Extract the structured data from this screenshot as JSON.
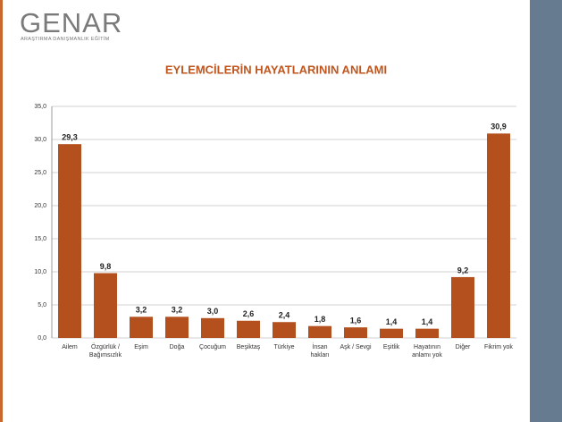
{
  "header": {
    "logo": "GENAR",
    "tagline": "ARAŞTIRMA DANIŞMANLIK EĞİTİM"
  },
  "chart_data": {
    "type": "bar",
    "title": "EYLEMCİLERİN HAYATLARININ ANLAMI",
    "categories": [
      "Ailem",
      "Özgürlük / Bağımsızlık",
      "Eşim",
      "Doğa",
      "Çocuğum",
      "Beşiktaş",
      "Türkiye",
      "İnsan hakları",
      "Aşk / Sevgi",
      "Eşitlik",
      "Hayatının anlamı yok",
      "Diğer",
      "Fikrim yok"
    ],
    "values": [
      29.3,
      9.8,
      3.2,
      3.2,
      3.0,
      2.6,
      2.4,
      1.8,
      1.6,
      1.4,
      1.4,
      9.2,
      30.9
    ],
    "value_labels": [
      "29,3",
      "9,8",
      "3,2",
      "3,2",
      "3,0",
      "2,6",
      "2,4",
      "1,8",
      "1,6",
      "1,4",
      "1,4",
      "9,2",
      "30,9"
    ],
    "color": "#b4501d",
    "ylim": [
      0,
      35
    ],
    "yticks": [
      {
        "value": 0,
        "label": "0,0"
      },
      {
        "value": 5,
        "label": "5,0"
      },
      {
        "value": 10,
        "label": "10,0"
      },
      {
        "value": 15,
        "label": "15,0"
      },
      {
        "value": 20,
        "label": "20,0"
      },
      {
        "value": 25,
        "label": "25,0"
      },
      {
        "value": 30,
        "label": "30,0"
      },
      {
        "value": 35,
        "label": "35,0"
      }
    ],
    "grid": true
  }
}
